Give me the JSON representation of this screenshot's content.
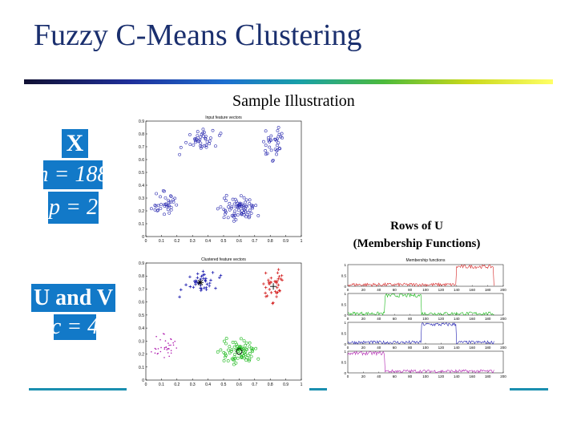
{
  "title": "Fuzzy C-Means Clustering",
  "subtitle": "Sample Illustration",
  "math": {
    "x_symbol": "X",
    "n_label": "n = 188",
    "p_label": "p = 2",
    "uv_label": "U and V",
    "c_label": "c = 4"
  },
  "caption": {
    "line1": "Rows of U",
    "line2": "(Membership Functions)"
  },
  "plots": {
    "input": {
      "title": "Input feature vectors",
      "x_ticks": [
        "0",
        "0.1",
        "0.2",
        "0.3",
        "0.4",
        "0.5",
        "0.6",
        "0.7",
        "0.8",
        "0.9",
        "1"
      ],
      "y_ticks": [
        "0",
        "0.1",
        "0.2",
        "0.3",
        "0.4",
        "0.5",
        "0.6",
        "0.7",
        "0.8",
        "0.9"
      ]
    },
    "clustered": {
      "title": "Clustered feature vectors",
      "x_ticks": [
        "0",
        "0.1",
        "0.2",
        "0.3",
        "0.4",
        "0.5",
        "0.6",
        "0.7",
        "0.8",
        "0.9",
        "1"
      ],
      "y_ticks": [
        "0",
        "0.1",
        "0.2",
        "0.3",
        "0.4",
        "0.5",
        "0.6",
        "0.7",
        "0.8",
        "0.9"
      ]
    },
    "membership": {
      "title": "Membership functions",
      "x_ticks": [
        "0",
        "20",
        "40",
        "60",
        "80",
        "100",
        "120",
        "140",
        "160",
        "180",
        "200"
      ],
      "y_ticks": [
        "0",
        "0.5",
        "1"
      ]
    }
  },
  "colors": {
    "title": "#1a2f6e",
    "math_box": "#1279c8",
    "input_points": "#2b2bb0",
    "cluster_1": "#1d1db0",
    "cluster_2": "#d42020",
    "cluster_3": "#b020b0",
    "cluster_4": "#18b818",
    "membership_lines": [
      "#d42020",
      "#18b818",
      "#1d1db0",
      "#b020b0"
    ],
    "bottom_line": "#1a8fb0"
  }
}
